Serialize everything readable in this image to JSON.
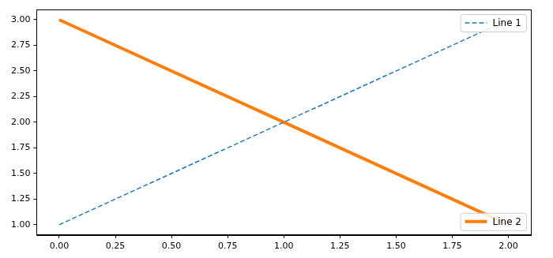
{
  "chart_data": {
    "type": "line",
    "x": [
      0,
      1,
      2
    ],
    "series": [
      {
        "name": "Line 1",
        "color": "#1f77b4",
        "line_style": "dashed",
        "legend": "upper right",
        "values": [
          1,
          2,
          3
        ]
      },
      {
        "name": "Line 2",
        "color": "#ff7f0e",
        "line_style": "solid",
        "legend": "lower right",
        "values": [
          3,
          2,
          1
        ]
      }
    ],
    "xlim": [
      -0.1,
      2.1
    ],
    "ylim": [
      0.9,
      3.1
    ],
    "xticks": [
      {
        "value": 0,
        "label": "0.00"
      },
      {
        "value": 0.25,
        "label": "0.25"
      },
      {
        "value": 0.5,
        "label": "0.50"
      },
      {
        "value": 0.75,
        "label": "0.75"
      },
      {
        "value": 1,
        "label": "1.00"
      },
      {
        "value": 1.25,
        "label": "1.25"
      },
      {
        "value": 1.5,
        "label": "1.50"
      },
      {
        "value": 1.75,
        "label": "1.75"
      },
      {
        "value": 2,
        "label": "2.00"
      }
    ],
    "yticks": [
      {
        "value": 1,
        "label": "1.00"
      },
      {
        "value": 1.25,
        "label": "1.25"
      },
      {
        "value": 1.5,
        "label": "1.50"
      },
      {
        "value": 1.75,
        "label": "1.75"
      },
      {
        "value": 2,
        "label": "2.00"
      },
      {
        "value": 2.25,
        "label": "2.25"
      },
      {
        "value": 2.5,
        "label": "2.50"
      },
      {
        "value": 2.75,
        "label": "2.75"
      },
      {
        "value": 3,
        "label": "3.00"
      }
    ],
    "grid": false
  }
}
